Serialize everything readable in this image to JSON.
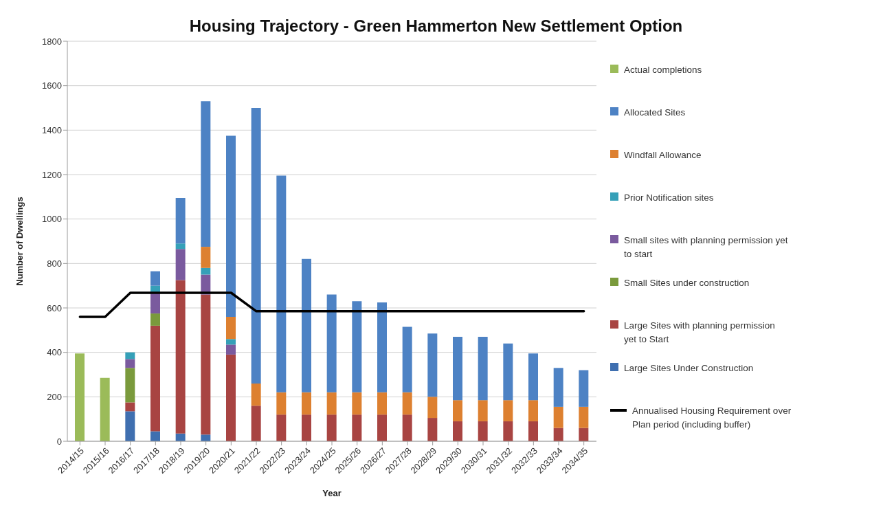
{
  "chart_data": {
    "type": "bar",
    "title": "Housing Trajectory - Green Hammerton New Settlement Option",
    "xlabel": "Year",
    "ylabel": "Number of Dwellings",
    "categories": [
      "2014/15",
      "2015/16",
      "2016/17",
      "2017/18",
      "2018/19",
      "2019/20",
      "2020/21",
      "2021/22",
      "2022/23",
      "2023/24",
      "2024/25",
      "2025/26",
      "2026/27",
      "2027/28",
      "2028/29",
      "2029/30",
      "2030/31",
      "2031/32",
      "2032/33",
      "2033/34",
      "2034/35"
    ],
    "stacked": true,
    "ylim": [
      0,
      1800
    ],
    "yticks": [
      0,
      200,
      400,
      600,
      800,
      1000,
      1200,
      1400,
      1600,
      1800
    ],
    "grid": "y",
    "legend": "right",
    "series": [
      {
        "name": "Large Sites Under Construction",
        "color": "#3f6fb0",
        "values": [
          null,
          null,
          135,
          45,
          35,
          30,
          null,
          null,
          null,
          null,
          null,
          null,
          null,
          null,
          null,
          null,
          null,
          null,
          null,
          null,
          null
        ]
      },
      {
        "name": "Large Sites with planning permission yet to Start",
        "color": "#a84442",
        "values": [
          null,
          null,
          40,
          475,
          690,
          630,
          390,
          160,
          120,
          120,
          120,
          120,
          120,
          120,
          105,
          90,
          90,
          90,
          90,
          60,
          60
        ]
      },
      {
        "name": "Small Sites under construction",
        "color": "#7a9a3c",
        "values": [
          null,
          null,
          155,
          55,
          null,
          null,
          null,
          null,
          null,
          null,
          null,
          null,
          null,
          null,
          null,
          null,
          null,
          null,
          null,
          null,
          null
        ]
      },
      {
        "name": "Small sites with planning permission yet to start",
        "color": "#7a5a9e",
        "values": [
          null,
          null,
          40,
          95,
          140,
          90,
          45,
          null,
          null,
          null,
          null,
          null,
          null,
          null,
          null,
          null,
          null,
          null,
          null,
          null,
          null
        ]
      },
      {
        "name": "Prior Notification sites",
        "color": "#35a0b8",
        "values": [
          null,
          null,
          30,
          30,
          25,
          30,
          25,
          null,
          null,
          null,
          null,
          null,
          null,
          null,
          null,
          null,
          null,
          null,
          null,
          null,
          null
        ]
      },
      {
        "name": "Windfall Allowance",
        "color": "#dd8030",
        "values": [
          null,
          null,
          null,
          null,
          null,
          95,
          100,
          100,
          100,
          100,
          100,
          100,
          100,
          100,
          95,
          95,
          95,
          95,
          95,
          95,
          95
        ]
      },
      {
        "name": "Allocated Sites",
        "color": "#4d82c4",
        "values": [
          null,
          null,
          null,
          65,
          205,
          655,
          815,
          1240,
          975,
          600,
          440,
          410,
          405,
          295,
          285,
          285,
          285,
          255,
          210,
          175,
          165
        ]
      },
      {
        "name": "Actual completions",
        "color": "#9bbb59",
        "values": [
          395,
          285,
          null,
          null,
          null,
          null,
          null,
          null,
          null,
          null,
          null,
          null,
          null,
          null,
          null,
          null,
          null,
          null,
          null,
          null,
          null
        ]
      },
      {
        "name": "Annualised Housing Requirement over Plan period (including buffer)",
        "type": "line",
        "color": "#000000",
        "marker": "none",
        "line_style": "solid",
        "values": [
          560,
          560,
          668,
          668,
          668,
          668,
          668,
          585,
          585,
          585,
          585,
          585,
          585,
          585,
          585,
          585,
          585,
          585,
          585,
          585,
          585
        ]
      }
    ]
  }
}
